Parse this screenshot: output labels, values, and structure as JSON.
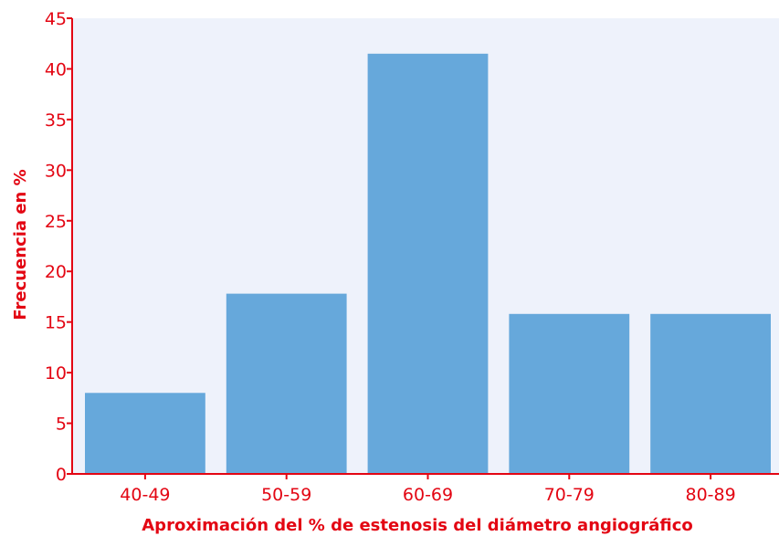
{
  "colors": {
    "plot_background": "#eef2fb",
    "bar": "#66a8db",
    "axis": "#e30613",
    "text": "#e30613"
  },
  "chart_data": {
    "type": "bar",
    "categories": [
      "40-49",
      "50-59",
      "60-69",
      "70-79",
      "80-89"
    ],
    "values": [
      8,
      17.8,
      41.5,
      15.8,
      15.8
    ],
    "xlabel": "Aproximación del % de estenosis del diámetro angiográfico",
    "ylabel": "Frecuencia en %",
    "ylim": [
      0,
      45
    ],
    "yticks": [
      "0",
      "5",
      "10",
      "15",
      "20",
      "25",
      "30",
      "35",
      "40",
      "45"
    ],
    "grid": false
  }
}
